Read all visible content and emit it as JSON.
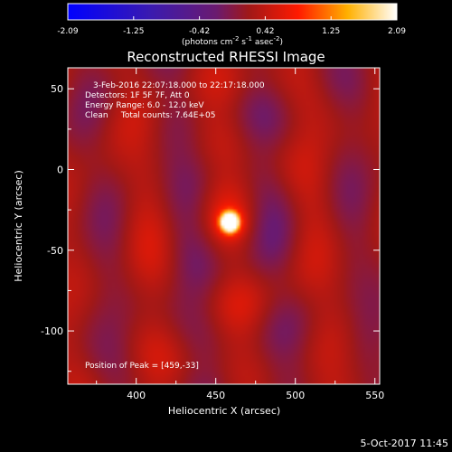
{
  "chart_data": {
    "type": "heatmap",
    "title": "Reconstructed RHESSI Image",
    "xlabel": "Heliocentric X (arcsec)",
    "ylabel": "Heliocentric Y (arcsec)",
    "xlim": [
      357,
      553
    ],
    "ylim": [
      -133,
      63
    ],
    "x_ticks": [
      400,
      450,
      500,
      550
    ],
    "y_ticks": [
      50,
      0,
      -50,
      -100
    ],
    "colorbar": {
      "ticks": [
        "-2.09",
        "-1.25",
        "-0.42",
        "0.42",
        "1.25",
        "2.09"
      ],
      "range": [
        -2.09,
        2.09
      ],
      "unit_label": "(photons cm",
      "unit_sup1": "-2",
      "unit_mid1": " s",
      "unit_sup2": "-1",
      "unit_mid2": " asec",
      "unit_sup3": "-2",
      "unit_end": ")"
    },
    "annotations": [
      "3-Feb-2016 22:07:18.000 to 22:17:18.000",
      "Detectors: 1F 5F 7F, Att 0",
      "Energy Range: 6.0 - 12.0 keV",
      "Clean     Total counts: 7.64E+05"
    ],
    "peak_label": "Position of Peak = [459,-33]",
    "peak": {
      "x": 459,
      "y": -33,
      "value": 2.09
    },
    "timestamp": "5-Oct-2017 11:45"
  }
}
